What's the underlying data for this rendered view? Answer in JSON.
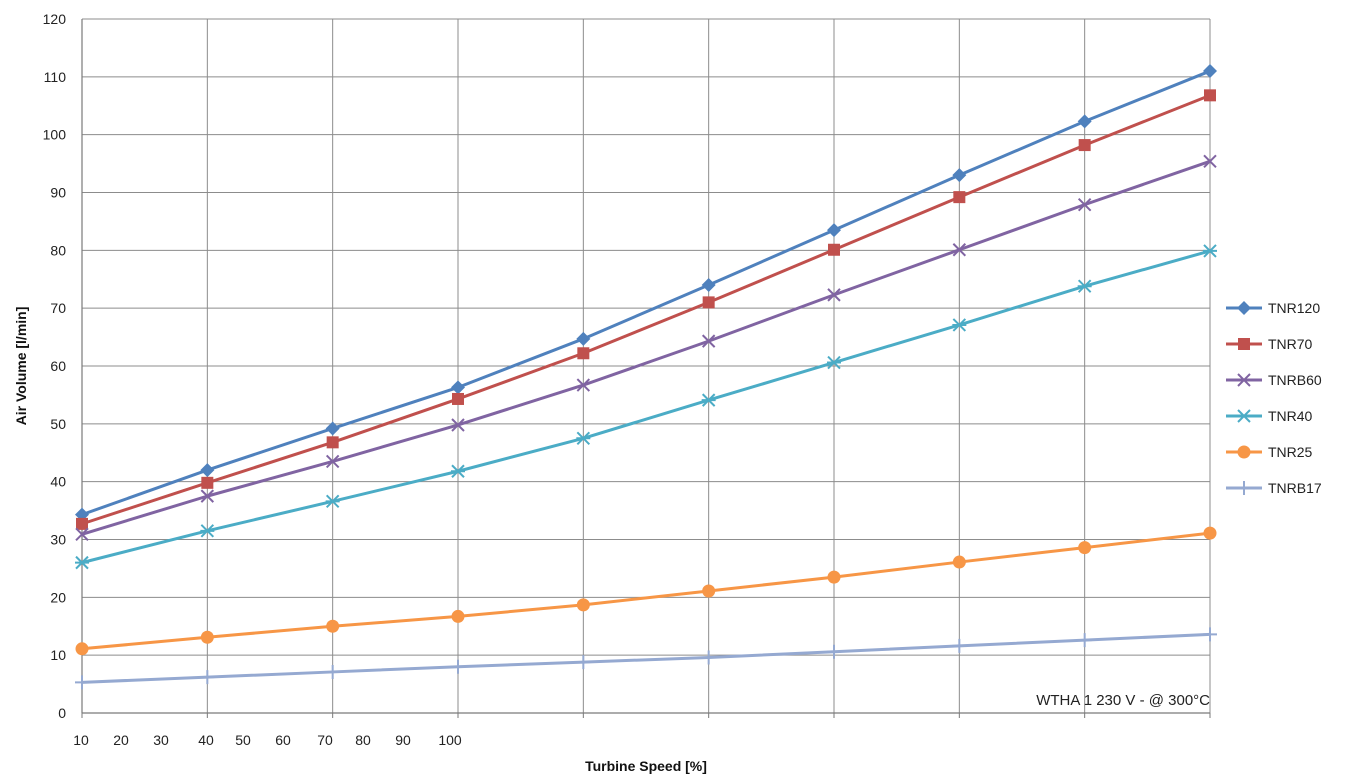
{
  "chart_data": {
    "type": "line",
    "title": "",
    "xlabel": "Turbine Speed [%]",
    "ylabel": "Air Volume [l/min]",
    "ylim": [
      0,
      120
    ],
    "y_ticks": [
      0,
      10,
      20,
      30,
      40,
      50,
      60,
      70,
      80,
      90,
      100,
      110,
      120
    ],
    "x_tick_labels": [
      "10",
      "20",
      "30",
      "40",
      "50",
      "60",
      "70",
      "80",
      "90",
      "100"
    ],
    "grid": true,
    "legend_position": "right",
    "annotation": "WTHA 1 230 V - @ 300°C",
    "series": [
      {
        "name": "TNR120",
        "color": "#4f81bd",
        "marker": "diamond",
        "values": [
          34.3,
          42,
          49.2,
          56.3,
          64.7,
          74,
          83.5,
          93,
          102.3,
          111
        ]
      },
      {
        "name": "TNR70",
        "color": "#c0504d",
        "marker": "square",
        "values": [
          32.7,
          39.8,
          46.8,
          54.3,
          62.2,
          71,
          80.1,
          89.2,
          98.2,
          106.8
        ]
      },
      {
        "name": "TNRB60",
        "color": "#8064a2",
        "marker": "x",
        "values": [
          30.9,
          37.5,
          43.5,
          49.8,
          56.7,
          64.3,
          72.3,
          80.1,
          87.9,
          95.4
        ]
      },
      {
        "name": "TNR40",
        "color": "#4bacc6",
        "marker": "star",
        "values": [
          26,
          31.5,
          36.6,
          41.8,
          47.5,
          54.1,
          60.6,
          67.1,
          73.8,
          79.9
        ]
      },
      {
        "name": "TNR25",
        "color": "#f79646",
        "marker": "circle",
        "values": [
          11.1,
          13.1,
          15,
          16.7,
          18.7,
          21.1,
          23.5,
          26.1,
          28.6,
          31.1
        ]
      },
      {
        "name": "TNRB17",
        "color": "#95a9d1",
        "marker": "plus",
        "values": [
          5.3,
          6.2,
          7.1,
          8,
          8.8,
          9.6,
          10.6,
          11.6,
          12.6,
          13.6
        ]
      }
    ]
  }
}
